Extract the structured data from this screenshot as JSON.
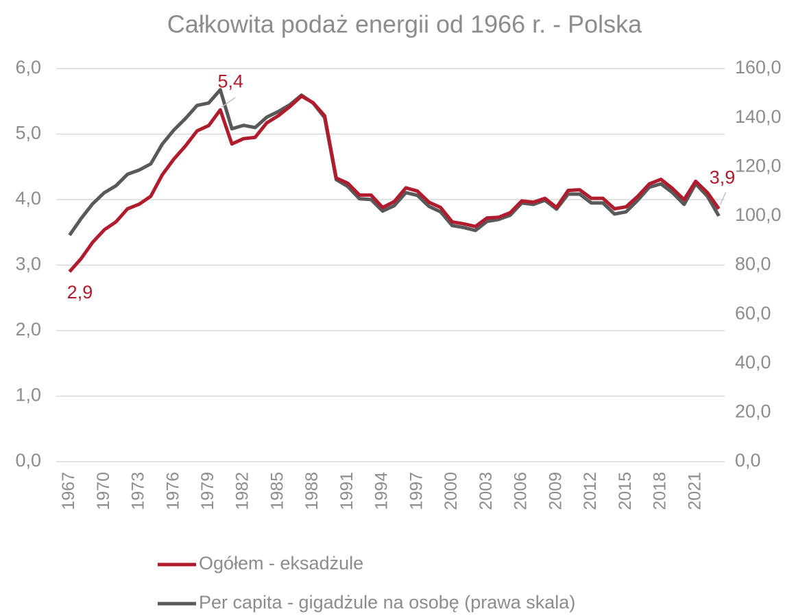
{
  "chart_data": {
    "type": "line",
    "title": "Całkowita podaż energii od 1966 r. - Polska",
    "categories": [
      "1967",
      null,
      null,
      "1970",
      null,
      null,
      "1973",
      null,
      null,
      "1976",
      null,
      null,
      "1979",
      null,
      null,
      "1982",
      null,
      null,
      "1985",
      null,
      null,
      "1988",
      null,
      null,
      "1991",
      null,
      null,
      "1994",
      null,
      null,
      "1997",
      null,
      null,
      "2000",
      null,
      null,
      "2003",
      null,
      null,
      "2006",
      null,
      null,
      "2009",
      null,
      null,
      "2012",
      null,
      null,
      "2015",
      null,
      null,
      "2018",
      null,
      null,
      "2021",
      null,
      null
    ],
    "series": [
      {
        "name": "Ogółem - eksadżule",
        "color": "#b01c2e",
        "values": [
          2.9,
          3.1,
          3.35,
          3.54,
          3.66,
          3.86,
          3.93,
          4.05,
          4.38,
          4.62,
          4.82,
          5.05,
          5.13,
          5.37,
          4.85,
          4.93,
          4.95,
          5.17,
          5.28,
          5.42,
          5.58,
          5.48,
          5.28,
          4.33,
          4.25,
          4.07,
          4.07,
          3.88,
          3.97,
          4.18,
          4.13,
          3.96,
          3.88,
          3.66,
          3.63,
          3.59,
          3.72,
          3.73,
          3.8,
          3.98,
          3.96,
          4.02,
          3.88,
          4.14,
          4.15,
          4.02,
          4.02,
          3.86,
          3.89,
          4.05,
          4.24,
          4.31,
          4.17,
          4.0,
          4.28,
          4.11,
          3.86
        ],
        "value_labels": [
          "2,9",
          null,
          null,
          null,
          null,
          null,
          null,
          null,
          null,
          null,
          null,
          null,
          null,
          "5,4",
          null,
          null,
          null,
          null,
          null,
          null,
          null,
          null,
          null,
          null,
          null,
          null,
          null,
          null,
          null,
          null,
          null,
          null,
          null,
          null,
          null,
          null,
          null,
          null,
          null,
          null,
          null,
          null,
          null,
          null,
          null,
          null,
          null,
          null,
          null,
          null,
          null,
          null,
          null,
          null,
          null,
          null,
          "3,9"
        ]
      },
      {
        "name": "Per capita - gigadżule na osobę (prawa skala)",
        "color": "#595959",
        "axis": "y2",
        "values": [
          92.2,
          99,
          105,
          109.5,
          112.3,
          117,
          118.7,
          121.2,
          129.3,
          135,
          139.7,
          145,
          146,
          151.4,
          135.5,
          136.9,
          136,
          140.2,
          142.5,
          145.3,
          149.2,
          146,
          140,
          114.8,
          112,
          107,
          106.7,
          102,
          104.2,
          109.5,
          108.4,
          103.9,
          101.7,
          96.1,
          95.3,
          94.1,
          97.8,
          98.6,
          100.3,
          105.3,
          104.7,
          106.4,
          102.8,
          108.9,
          108.9,
          105.3,
          105.3,
          100.8,
          101.7,
          106.4,
          111.7,
          113.1,
          109.5,
          104.7,
          113.1,
          108.1,
          100
        ]
      }
    ],
    "ylim": [
      0,
      6
    ],
    "yticks": [
      {
        "value": 0,
        "label": "0,0"
      },
      {
        "value": 1,
        "label": "1,0"
      },
      {
        "value": 2,
        "label": "2,0"
      },
      {
        "value": 3,
        "label": "3,0"
      },
      {
        "value": 4,
        "label": "4,0"
      },
      {
        "value": 5,
        "label": "5,0"
      },
      {
        "value": 6,
        "label": "6,0"
      }
    ],
    "y2lim": [
      0,
      160
    ],
    "y2ticks": [
      {
        "value": 0,
        "label": "0,0"
      },
      {
        "value": 20,
        "label": "20,0"
      },
      {
        "value": 40,
        "label": "40,0"
      },
      {
        "value": 60,
        "label": "60,0"
      },
      {
        "value": 80,
        "label": "80,0"
      },
      {
        "value": 100,
        "label": "100,0"
      },
      {
        "value": 120,
        "label": "120,0"
      },
      {
        "value": 140,
        "label": "140,0"
      },
      {
        "value": 160,
        "label": "160,0"
      }
    ],
    "grid": true,
    "legend": "bottom"
  }
}
